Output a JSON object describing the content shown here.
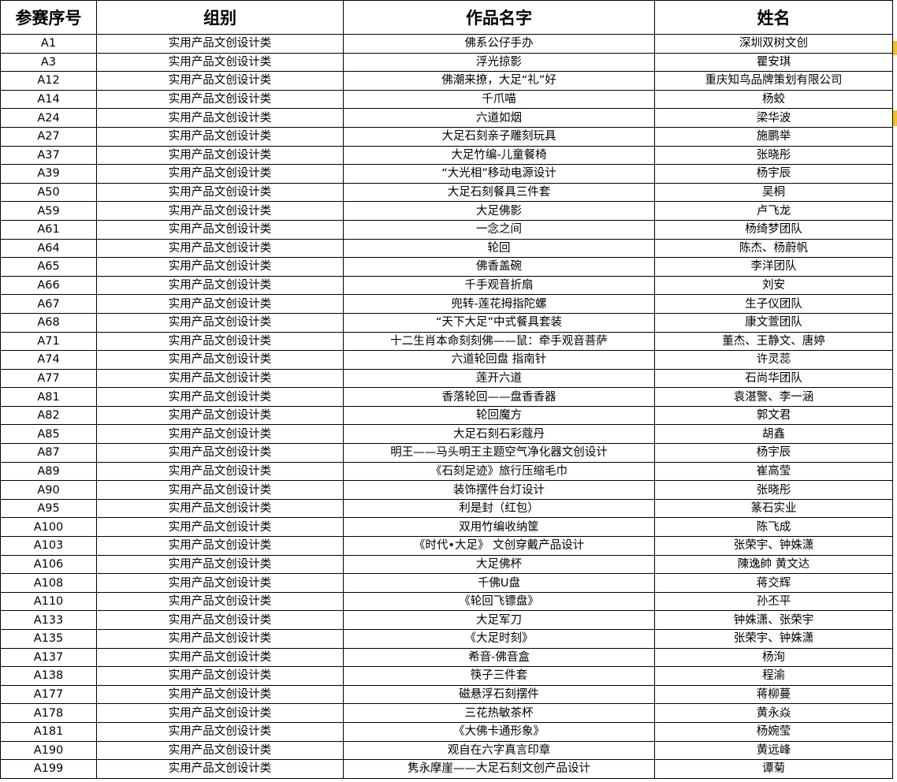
{
  "table": {
    "header": [
      "参赛序号",
      "组别",
      "作品名字",
      "姓名"
    ],
    "rows": [
      [
        "A1",
        "实用产品文创设计类",
        "佛系公仔手办",
        "深圳双树文创"
      ],
      [
        "A3",
        "实用产品文创设计类",
        "浮光掠影",
        "瞿安琪"
      ],
      [
        "A12",
        "实用产品文创设计类",
        "佛潮来撩，大足“礼”好",
        "重庆知鸟品牌策划有限公司"
      ],
      [
        "A14",
        "实用产品文创设计类",
        "千爪喵",
        "杨蛟"
      ],
      [
        "A24",
        "实用产品文创设计类",
        "六道如烟",
        "梁华波"
      ],
      [
        "A27",
        "实用产品文创设计类",
        "大足石刻亲子雕刻玩具",
        "施鹏举"
      ],
      [
        "A37",
        "实用产品文创设计类",
        "大足竹编-儿童餐椅",
        "张晓彤"
      ],
      [
        "A39",
        "实用产品文创设计类",
        "“大光相”移动电源设计",
        "杨宇辰"
      ],
      [
        "A50",
        "实用产品文创设计类",
        "大足石刻餐具三件套",
        "吴桐"
      ],
      [
        "A59",
        "实用产品文创设计类",
        "大足佛影",
        "卢飞龙"
      ],
      [
        "A61",
        "实用产品文创设计类",
        "一念之间",
        "杨绮梦团队"
      ],
      [
        "A64",
        "实用产品文创设计类",
        "轮回",
        "陈杰、杨蔚帆"
      ],
      [
        "A65",
        "实用产品文创设计类",
        "佛香盖碗",
        "李洋团队"
      ],
      [
        "A66",
        "实用产品文创设计类",
        "千手观音折扇",
        "刘安"
      ],
      [
        "A67",
        "实用产品文创设计类",
        "兜转-莲花拇指陀螺",
        "生子仪团队"
      ],
      [
        "A68",
        "实用产品文创设计类",
        "“天下大足”中式餐具套装",
        "康文萱团队"
      ],
      [
        "A71",
        "实用产品文创设计类",
        "十二生肖本命刻刻佛——鼠：牵手观音菩萨",
        "董杰、王静文、唐婷"
      ],
      [
        "A74",
        "实用产品文创设计类",
        "六道轮回盘 指南针",
        "许灵蕊"
      ],
      [
        "A77",
        "实用产品文创设计类",
        "莲开六道",
        "石尚华团队"
      ],
      [
        "A81",
        "实用产品文创设计类",
        "香落轮回——盘香香器",
        "袁湛警、李一涵"
      ],
      [
        "A82",
        "实用产品文创设计类",
        "轮回魔方",
        "郭文君"
      ],
      [
        "A85",
        "实用产品文创设计类",
        "大足石刻石彩蔻丹",
        "胡鑫"
      ],
      [
        "A87",
        "实用产品文创设计类",
        "明王——马头明王主题空气净化器文创设计",
        "杨宇辰"
      ],
      [
        "A89",
        "实用产品文创设计类",
        "《石刻足迹》旅行压缩毛巾",
        "崔高莹"
      ],
      [
        "A90",
        "实用产品文创设计类",
        "装饰摆件台灯设计",
        "张晓彤"
      ],
      [
        "A95",
        "实用产品文创设计类",
        "利是封（红包）",
        "篆石实业"
      ],
      [
        "A100",
        "实用产品文创设计类",
        "双用竹编收纳筐",
        "陈飞成"
      ],
      [
        "A103",
        "实用产品文创设计类",
        "《时代•大足》 文创穿戴产品设计",
        "张荣宇、钟姝潇"
      ],
      [
        "A106",
        "实用产品文创设计类",
        "大足佛杯",
        "陳逸帥  黄文达"
      ],
      [
        "A108",
        "实用产品文创设计类",
        "千佛U盘",
        "蒋交辉"
      ],
      [
        "A110",
        "实用产品文创设计类",
        "《轮回飞镖盘》",
        "孙丕平"
      ],
      [
        "A133",
        "实用产品文创设计类",
        "大足军刀",
        "钟姝潇、张荣宇"
      ],
      [
        "A135",
        "实用产品文创设计类",
        "《大足时刻》",
        "张荣宇、钟姝潇"
      ],
      [
        "A137",
        "实用产品文创设计类",
        "希音-佛音盒",
        "杨洵"
      ],
      [
        "A138",
        "实用产品文创设计类",
        "筷子三件套",
        "程渝"
      ],
      [
        "A177",
        "实用产品文创设计类",
        "磁悬浮石刻摆件",
        "蒋柳蔓"
      ],
      [
        "A178",
        "实用产品文创设计类",
        "三花热敏茶杯",
        "黄永焱"
      ],
      [
        "A181",
        "实用产品文创设计类",
        "《大佛卡通形象》",
        "杨婉莹"
      ],
      [
        "A190",
        "实用产品文创设计类",
        "观自在六字真言印章",
        "黄远峰"
      ],
      [
        "A199",
        "实用产品文创设计类",
        "隽永摩崖——大足石刻文创产品设计",
        "谭菊"
      ]
    ]
  }
}
